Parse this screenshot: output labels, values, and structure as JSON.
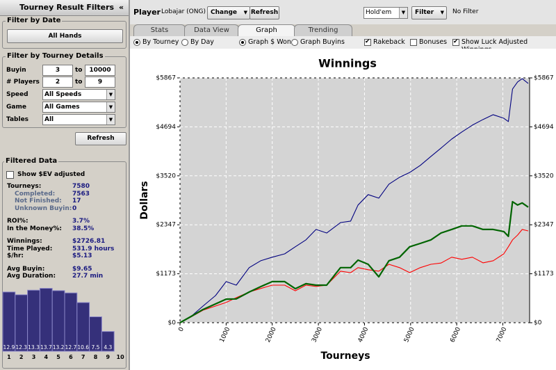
{
  "sidebar": {
    "title": "Tourney Result Filters",
    "collapse": "«",
    "date_filter": {
      "legend": "Filter by Date",
      "button": "All Hands"
    },
    "tourney_filter": {
      "legend": "Filter by Tourney Details",
      "buyin": {
        "label": "Buyin",
        "from": 3,
        "to_label": "to",
        "to": 10000
      },
      "players": {
        "label": "# Players",
        "from": 2,
        "to_label": "to",
        "to": 9
      },
      "speed": {
        "label": "Speed",
        "value": "All Speeds"
      },
      "game": {
        "label": "Game",
        "value": "All Games"
      },
      "tables": {
        "label": "Tables",
        "value": "All"
      },
      "button": "Refresh"
    },
    "filtered_data": {
      "legend": "Filtered Data",
      "ev_checkbox": "Show $EV adjusted",
      "stats": [
        [
          {
            "label": "Tourneys:",
            "value": 7580
          },
          {
            "label": "Completed:",
            "value": 7563
          },
          {
            "label": "Not Finished:",
            "value": 17
          },
          {
            "label": "Unknown Buyin:",
            "value": 0
          }
        ],
        [
          {
            "label": "ROI%:",
            "value": "3.7%"
          },
          {
            "label": "In the Money%:",
            "value": "38.5%"
          }
        ],
        [
          {
            "label": "Winnings:",
            "value": "$2726.81"
          },
          {
            "label": "Time Played:",
            "value": "531.9 hours"
          },
          {
            "label": "$/hr:",
            "value": "$5.13"
          }
        ],
        [
          {
            "label": "Avg Buyin:",
            "value": "$9.65"
          },
          {
            "label": "Avg Duration:",
            "value": "27.7 min"
          }
        ]
      ]
    },
    "histogram": {
      "categories": [
        "1",
        "2",
        "3",
        "4",
        "5",
        "6",
        "7",
        "8",
        "9",
        "10"
      ],
      "values": [
        12.9,
        12.3,
        13.3,
        13.7,
        13.2,
        12.7,
        10.6,
        7.5,
        4.3,
        null
      ]
    }
  },
  "toolbar": {
    "player_label": "Player",
    "player": "Lobajar (ONG)",
    "change": "Change",
    "refresh": "Refresh",
    "game": "Hold'em",
    "filter": "Filter",
    "filter_status": "No Filter"
  },
  "tabs": [
    "Stats",
    "Data View",
    "Graph",
    "Trending"
  ],
  "active_tab": 2,
  "options": [
    {
      "label": "By Tourney",
      "kind": "radio",
      "checked": true
    },
    {
      "label": "By Day",
      "kind": "radio",
      "checked": false
    },
    {
      "label": "Graph $ Won",
      "kind": "radio",
      "checked": true
    },
    {
      "label": "Graph Buyins",
      "kind": "radio",
      "checked": false
    },
    {
      "label": "Rakeback",
      "kind": "checkbox",
      "checked": true
    },
    {
      "label": "Bonuses",
      "kind": "checkbox",
      "checked": false
    },
    {
      "label": "Show Luck Adjusted Winnings",
      "kind": "checkbox",
      "checked": true
    }
  ],
  "chart_data": {
    "type": "line",
    "title": "Winnings",
    "x_label": "Tourneys",
    "y_label": "Dollars",
    "x": [
      0,
      240,
      500,
      770,
      1000,
      1220,
      1500,
      1750,
      2000,
      2270,
      2500,
      2730,
      2950,
      3180,
      3480,
      3700,
      3860,
      4080,
      4310,
      4530,
      4760,
      4980,
      5210,
      5440,
      5660,
      5890,
      6110,
      6340,
      6570,
      6790,
      7020,
      7120,
      7210,
      7320,
      7420,
      7550
    ],
    "series": [
      {
        "color": "#000080",
        "values": [
          0,
          150,
          400,
          650,
          985,
          900,
          1320,
          1485,
          1570,
          1650,
          1820,
          1985,
          2235,
          2150,
          2400,
          2435,
          2820,
          3070,
          2985,
          3320,
          3485,
          3600,
          3770,
          3985,
          4185,
          4400,
          4570,
          4735,
          4870,
          4985,
          4900,
          4820,
          5600,
          5770,
          5850,
          5735
        ]
      },
      {
        "color": "#ff0000",
        "values": [
          0,
          140,
          300,
          400,
          485,
          600,
          735,
          820,
          900,
          900,
          765,
          900,
          870,
          900,
          1235,
          1200,
          1320,
          1270,
          1235,
          1400,
          1320,
          1200,
          1320,
          1400,
          1430,
          1570,
          1520,
          1570,
          1435,
          1485,
          1650,
          1820,
          1985,
          2100,
          2235,
          2200
        ]
      },
      {
        "color": "#006400",
        "values": [
          0,
          150,
          317,
          450,
          565,
          570,
          735,
          865,
          985,
          985,
          815,
          935,
          900,
          900,
          1320,
          1320,
          1500,
          1400,
          1100,
          1485,
          1570,
          1820,
          1900,
          1985,
          2150,
          2235,
          2320,
          2320,
          2235,
          2235,
          2185,
          2070,
          2900,
          2820,
          2870,
          2770
        ]
      }
    ],
    "xlim": [
      0,
      7580
    ],
    "ylim": [
      0,
      5867
    ],
    "xticks": [
      0,
      1000,
      2000,
      3000,
      4000,
      5000,
      6000,
      7000
    ],
    "yticks": [
      {
        "value": 0,
        "label": "$0"
      },
      {
        "value": 1173,
        "label": "$1173"
      },
      {
        "value": 2347,
        "label": "$2347"
      },
      {
        "value": 3520,
        "label": "$3520"
      },
      {
        "value": 4694,
        "label": "$4694"
      },
      {
        "value": 5867,
        "label": "$5867"
      }
    ],
    "grid": true,
    "right_axis_labels": true
  }
}
